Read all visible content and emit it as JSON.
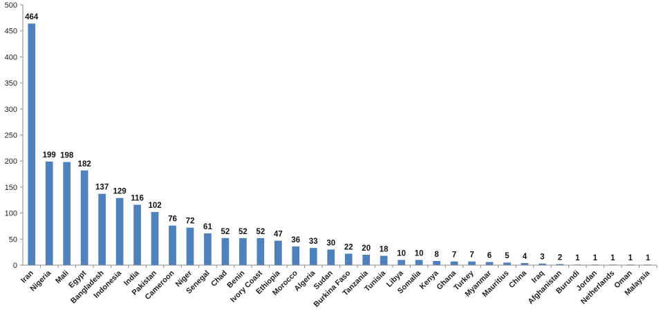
{
  "chart_data": {
    "type": "bar",
    "title": "",
    "xlabel": "",
    "ylabel": "",
    "ylim": [
      0,
      500
    ],
    "yticks": [
      0,
      50,
      100,
      150,
      200,
      250,
      300,
      350,
      400,
      450,
      500
    ],
    "grid": false,
    "bar_color": "#4F81BD",
    "categories": [
      "Iran",
      "Nigeria",
      "Mali",
      "Egypt",
      "Bangladesh",
      "Indonesia",
      "India",
      "Pakistan",
      "Cameroon",
      "Niger",
      "Senegal",
      "Chad",
      "Benin",
      "Ivory Coast",
      "Ethiopia",
      "Morocco",
      "Algeria",
      "Sudan",
      "Burkina Faso",
      "Tanzania",
      "Tunisia",
      "Libya",
      "Somalia",
      "Kenya",
      "Ghana",
      "Turkey",
      "Myanmar",
      "Mauritius",
      "China",
      "Iraq",
      "Afghanistan",
      "Burundi",
      "Jordan",
      "Netherlands",
      "Oman",
      "Malaysia"
    ],
    "values": [
      464,
      199,
      198,
      182,
      137,
      129,
      116,
      102,
      76,
      72,
      61,
      52,
      52,
      52,
      47,
      36,
      33,
      30,
      22,
      20,
      18,
      10,
      10,
      8,
      7,
      7,
      6,
      5,
      4,
      3,
      2,
      1,
      1,
      1,
      1,
      1
    ]
  }
}
